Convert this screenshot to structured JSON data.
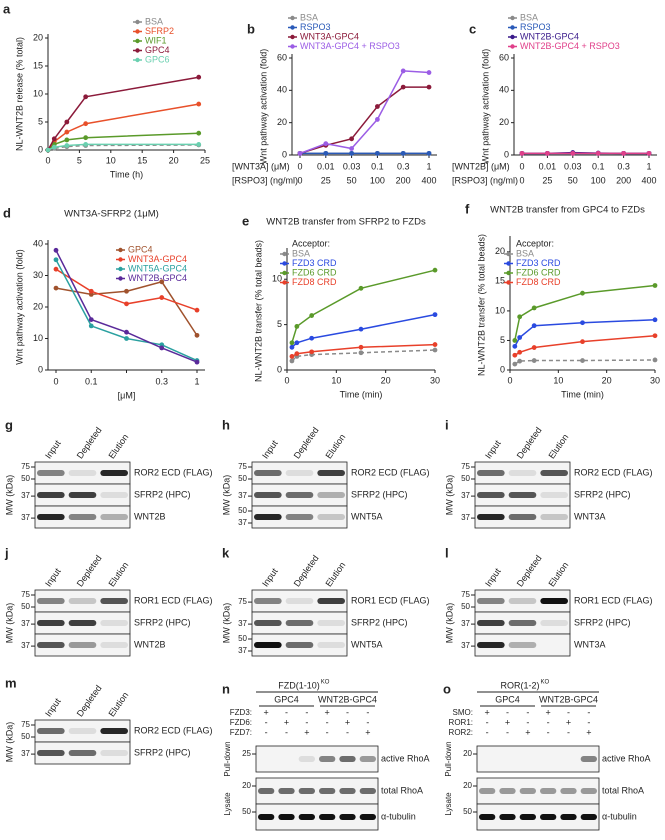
{
  "chart_data": [
    {
      "panel": "a",
      "type": "line",
      "ylabel": "NL-WNT2B release (% total)",
      "xlabel": "Time (h)",
      "x": [
        0,
        1,
        3,
        6,
        24
      ],
      "xlim": [
        0,
        25
      ],
      "xticks": [
        0,
        5,
        10,
        15,
        20,
        25
      ],
      "ylim": [
        0,
        20
      ],
      "yticks": [
        0,
        5,
        10,
        15,
        20
      ],
      "series": [
        {
          "name": "BSA",
          "color": "#8a8a8a",
          "linestyle": "dashed",
          "values": [
            0,
            0.3,
            0.6,
            0.8,
            0.9
          ]
        },
        {
          "name": "SFRP2",
          "color": "#e8502a",
          "values": [
            0,
            1.5,
            3.2,
            4.7,
            8.2
          ]
        },
        {
          "name": "WIF1",
          "color": "#5a9a2a",
          "values": [
            0,
            1,
            1.8,
            2.2,
            3
          ]
        },
        {
          "name": "GPC4",
          "color": "#8b1a3a",
          "values": [
            0,
            2,
            5,
            9.5,
            13
          ]
        },
        {
          "name": "GPC6",
          "color": "#6ad0b0",
          "values": [
            0,
            0.5,
            0.8,
            1,
            1
          ]
        }
      ]
    },
    {
      "panel": "b",
      "type": "line",
      "ylabel": "Wnt pathway activation (fold)",
      "xlabel": "[WNT3A] (μM)",
      "categories": [
        "0",
        "0.01",
        "0.03",
        "0.1",
        "0.3",
        "1"
      ],
      "xlabel2": "[RSPO3] (ng/ml)",
      "categories2": [
        "0",
        "25",
        "50",
        "100",
        "200",
        "400"
      ],
      "ylim": [
        0,
        60
      ],
      "yticks": [
        0,
        20,
        40,
        60
      ],
      "series": [
        {
          "name": "BSA",
          "color": "#8a8a8a",
          "values": [
            1,
            1,
            1,
            1,
            1,
            1
          ]
        },
        {
          "name": "RSPO3",
          "color": "#2a5ab8",
          "values": [
            1,
            1,
            1,
            1,
            1,
            1
          ]
        },
        {
          "name": "WNT3A-GPC4",
          "color": "#8b1a3a",
          "values": [
            1,
            6,
            10,
            30,
            42,
            42
          ]
        },
        {
          "name": "WNT3A-GPC4 + RSPO3",
          "color": "#9b5de5",
          "values": [
            1,
            7,
            4,
            22,
            52,
            51
          ]
        }
      ]
    },
    {
      "panel": "c",
      "type": "line",
      "ylabel": "Wnt pathway activation (fold)",
      "xlabel": "[WNT2B] (μM)",
      "categories": [
        "0",
        "0.01",
        "0.03",
        "0.1",
        "0.3",
        "1"
      ],
      "xlabel2": "[RSPO3] (ng/ml)",
      "categories2": [
        "0",
        "25",
        "50",
        "100",
        "200",
        "400"
      ],
      "ylim": [
        0,
        60
      ],
      "yticks": [
        0,
        20,
        40,
        60
      ],
      "series": [
        {
          "name": "BSA",
          "color": "#8a8a8a",
          "values": [
            1,
            1,
            1,
            1,
            1,
            1
          ]
        },
        {
          "name": "RSPO3",
          "color": "#2a5ab8",
          "values": [
            1,
            1,
            1,
            1,
            1,
            1
          ]
        },
        {
          "name": "WNT2B-GPC4",
          "color": "#3a1a8a",
          "values": [
            1,
            1,
            1.5,
            1.2,
            1,
            1
          ]
        },
        {
          "name": "WNT2B-GPC4 + RSPO3",
          "color": "#e0408a",
          "values": [
            1,
            1,
            1,
            1,
            1,
            1
          ]
        }
      ]
    },
    {
      "panel": "d",
      "type": "line",
      "title": "WNT3A-SFRP2 (1μM)",
      "ylabel": "Wnt pathway activation (fold)",
      "xlabel": "[μM]",
      "categories": [
        "0",
        "0.1",
        null,
        "0.3",
        "1"
      ],
      "ylim": [
        0,
        40
      ],
      "yticks": [
        0,
        10,
        20,
        30,
        40
      ],
      "series": [
        {
          "name": "GPC4",
          "color": "#a0522d",
          "values": [
            26,
            24,
            25,
            28,
            11
          ]
        },
        {
          "name": "WNT3A-GPC4",
          "color": "#e8402a",
          "values": [
            32,
            25,
            21,
            23,
            19
          ]
        },
        {
          "name": "WNT5A-GPC4",
          "color": "#2aa0a0",
          "values": [
            35,
            14,
            10,
            8,
            3
          ]
        },
        {
          "name": "WNT2B-GPC4",
          "color": "#5a2a9a",
          "values": [
            38,
            16,
            12,
            7,
            2.5
          ]
        }
      ]
    },
    {
      "panel": "e",
      "type": "line",
      "title": "WNT2B transfer from SFRP2 to FZDs",
      "legend_title": "Acceptor:",
      "ylabel": "NL-WNT2B transfer (% total beads)",
      "xlabel": "Time (min)",
      "x": [
        1,
        2,
        5,
        15,
        30
      ],
      "xlim": [
        0,
        30
      ],
      "xticks": [
        0,
        10,
        20,
        30
      ],
      "ylim": [
        0,
        13
      ],
      "yticks": [
        0,
        5,
        10
      ],
      "series": [
        {
          "name": "BSA",
          "color": "#8a8a8a",
          "linestyle": "dashed",
          "values": [
            1,
            1.5,
            1.7,
            1.9,
            2.2
          ]
        },
        {
          "name": "FZD3 CRD",
          "color": "#2a4ae0",
          "values": [
            2.5,
            3,
            3.5,
            4.5,
            6.1
          ]
        },
        {
          "name": "FZD6 CRD",
          "color": "#5a9a2a",
          "values": [
            3,
            4.8,
            6,
            9,
            11
          ]
        },
        {
          "name": "FZD8 CRD",
          "color": "#e8402a",
          "values": [
            1.5,
            1.8,
            2,
            2.5,
            2.8
          ]
        }
      ]
    },
    {
      "panel": "f",
      "type": "line",
      "title": "WNT2B transfer from GPC4 to FZDs",
      "legend_title": "Acceptor:",
      "ylabel": "NL-WNT2B transfer (% total beads)",
      "xlabel": "Time (min)",
      "x": [
        1,
        2,
        5,
        15,
        30
      ],
      "xlim": [
        0,
        30
      ],
      "xticks": [
        0,
        10,
        20,
        30
      ],
      "ylim": [
        0,
        22
      ],
      "yticks": [
        0,
        5,
        10,
        15,
        20
      ],
      "series": [
        {
          "name": "BSA",
          "color": "#8a8a8a",
          "linestyle": "dashed",
          "values": [
            1,
            1.5,
            1.6,
            1.6,
            1.7
          ]
        },
        {
          "name": "FZD3 CRD",
          "color": "#2a4ae0",
          "values": [
            4,
            5.5,
            7.5,
            8,
            8.5
          ]
        },
        {
          "name": "FZD6 CRD",
          "color": "#5a9a2a",
          "values": [
            5,
            9,
            10.5,
            13,
            14.3
          ]
        },
        {
          "name": "FZD8 CRD",
          "color": "#e8402a",
          "values": [
            2.5,
            3,
            3.8,
            4.8,
            5.8
          ]
        }
      ]
    }
  ],
  "blots": [
    {
      "panel": "g",
      "mw_label": "MW (kDa)",
      "lanes": [
        "Input",
        "Depleted",
        "Elution"
      ],
      "rows": [
        {
          "label": "ROR2 ECD (FLAG)",
          "mw": [
            75,
            50
          ]
        },
        {
          "label": "SFRP2 (HPC)",
          "mw": [
            37
          ]
        },
        {
          "label": "WNT2B",
          "mw": [
            37
          ]
        }
      ]
    },
    {
      "panel": "h",
      "mw_label": "MW (kDa)",
      "lanes": [
        "Input",
        "Depleted",
        "Elution"
      ],
      "rows": [
        {
          "label": "ROR2 ECD (FLAG)",
          "mw": [
            75,
            50
          ]
        },
        {
          "label": "SFRP2 (HPC)",
          "mw": [
            37
          ]
        },
        {
          "label": "WNT5A",
          "mw": [
            50,
            37
          ]
        }
      ]
    },
    {
      "panel": "i",
      "mw_label": "MW (kDa)",
      "lanes": [
        "Input",
        "Depleted",
        "Elution"
      ],
      "rows": [
        {
          "label": "ROR2 ECD (FLAG)",
          "mw": [
            75,
            50
          ]
        },
        {
          "label": "SFRP2 (HPC)",
          "mw": [
            37
          ]
        },
        {
          "label": "WNT3A",
          "mw": [
            37
          ]
        }
      ]
    },
    {
      "panel": "j",
      "mw_label": "MW (kDa)",
      "lanes": [
        "Input",
        "Depleted",
        "Elution"
      ],
      "rows": [
        {
          "label": "ROR1 ECD (FLAG)",
          "mw": [
            75,
            50
          ]
        },
        {
          "label": "SFRP2 (HPC)",
          "mw": [
            37
          ]
        },
        {
          "label": "WNT2B",
          "mw": [
            37
          ]
        }
      ]
    },
    {
      "panel": "k",
      "mw_label": "MW (kDa)",
      "lanes": [
        "Input",
        "Depleted",
        "Elution"
      ],
      "rows": [
        {
          "label": "ROR1 ECD (FLAG)",
          "mw": [
            75
          ]
        },
        {
          "label": "SFRP2 (HPC)",
          "mw": [
            37
          ]
        },
        {
          "label": "WNT5A",
          "mw": [
            50,
            37
          ]
        }
      ]
    },
    {
      "panel": "l",
      "mw_label": "MW (kDa)",
      "lanes": [
        "Input",
        "Depleted",
        "Elution"
      ],
      "rows": [
        {
          "label": "ROR1 ECD (FLAG)",
          "mw": [
            75,
            50
          ]
        },
        {
          "label": "SFRP2 (HPC)",
          "mw": [
            37
          ]
        },
        {
          "label": "WNT3A",
          "mw": [
            37
          ]
        }
      ]
    },
    {
      "panel": "m",
      "mw_label": "MW (kDa)",
      "lanes": [
        "Input",
        "Depleted",
        "Elution"
      ],
      "rows": [
        {
          "label": "ROR2 ECD (FLAG)",
          "mw": [
            75,
            50
          ]
        },
        {
          "label": "SFRP2 (HPC)",
          "mw": [
            37
          ]
        }
      ]
    },
    {
      "panel": "n",
      "header": "FZD(1-10)",
      "header_sup": "KO",
      "groups": [
        "GPC4",
        "WNT2B-GPC4"
      ],
      "conditions": [
        {
          "label": "FZD3:",
          "signs": [
            "+",
            "-",
            "-",
            "+",
            "-",
            "-"
          ]
        },
        {
          "label": "FZD6:",
          "signs": [
            "-",
            "+",
            "-",
            "-",
            "+",
            "-"
          ]
        },
        {
          "label": "FZD7:",
          "signs": [
            "-",
            "-",
            "+",
            "-",
            "-",
            "+"
          ]
        }
      ],
      "sections": [
        {
          "label": "Pull-down",
          "rows": [
            {
              "label": "active RhoA",
              "mw": [
                25
              ]
            }
          ]
        },
        {
          "label": "Lysate",
          "rows": [
            {
              "label": "total RhoA",
              "mw": [
                20
              ]
            },
            {
              "label": "α-tubulin",
              "mw": [
                50
              ]
            }
          ]
        }
      ]
    },
    {
      "panel": "o",
      "header": "ROR(1-2)",
      "header_sup": "KO",
      "groups": [
        "GPC4",
        "WNT2B-GPC4"
      ],
      "conditions": [
        {
          "label": "SMO:",
          "signs": [
            "+",
            "-",
            "-",
            "+",
            "-",
            "-"
          ]
        },
        {
          "label": "ROR1:",
          "signs": [
            "-",
            "+",
            "-",
            "-",
            "+",
            "-"
          ]
        },
        {
          "label": "ROR2:",
          "signs": [
            "-",
            "-",
            "+",
            "-",
            "-",
            "+"
          ]
        }
      ],
      "sections": [
        {
          "label": "Pull-down",
          "rows": [
            {
              "label": "active RhoA",
              "mw": [
                20
              ]
            }
          ]
        },
        {
          "label": "Lysate",
          "rows": [
            {
              "label": "total RhoA",
              "mw": [
                20
              ]
            },
            {
              "label": "α-tubulin",
              "mw": [
                50
              ]
            }
          ]
        }
      ]
    }
  ]
}
